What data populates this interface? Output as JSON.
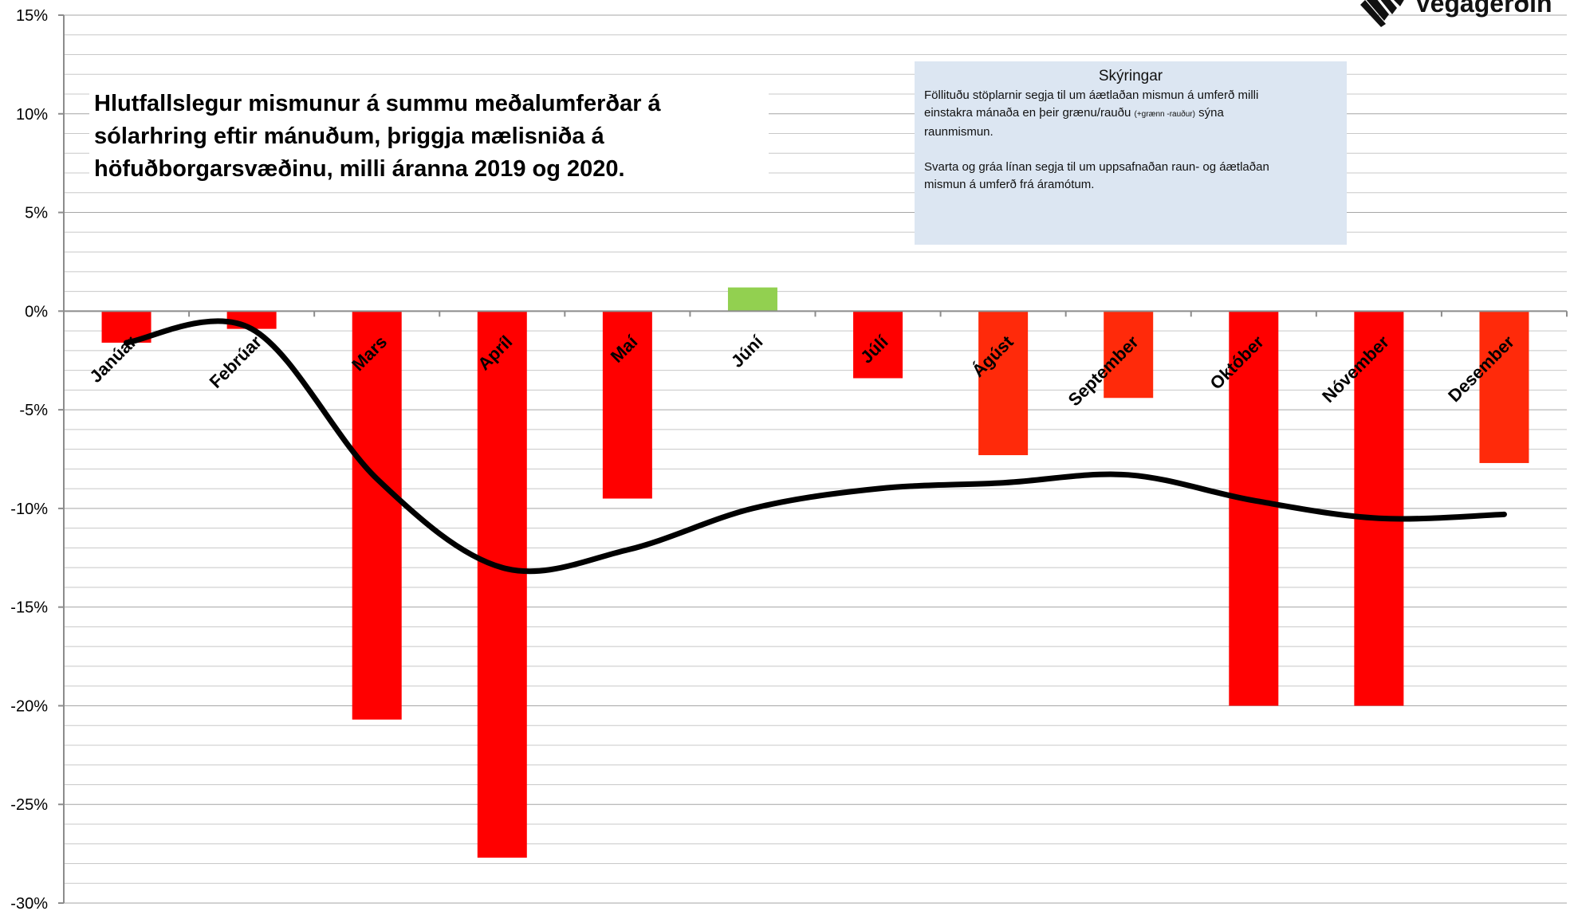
{
  "logo": {
    "text": "Vegagerðin",
    "icon": "vegagerdin-logo-icon"
  },
  "title": {
    "lines": [
      "Hlutfallslegur mismunur á summu meðalumferðar á",
      "sólarhring eftir mánuðum, þriggja mælisniða á",
      "höfuðborgarsvæðinu, milli áranna 2019 og 2020."
    ]
  },
  "legend": {
    "title": "Skýringar",
    "p1_line1": "Föllituðu stöplarnir segja til um áætlaðan mismun á umferð milli",
    "p1_line2_pre": "einstakra mánaða en þeir grænu/rauðu",
    "p1_line2_small": "(+grænn -rauður)",
    "p1_line2_post": "sýna",
    "p1_line3": "raunmismun.",
    "p2_line1": "Svarta og gráa línan segja til um uppsafnaðan raun- og áætlaðan",
    "p2_line2": "mismun á umferð frá áramótum."
  },
  "colors": {
    "positive": "#92d050",
    "negative": "#ff0000",
    "estimated": "#ff2a0a",
    "line": "#000000",
    "legend_bg": "#dce6f2"
  },
  "chart_data": {
    "type": "bar",
    "categories": [
      "Janúar",
      "Febrúar",
      "Mars",
      "Apríl",
      "Maí",
      "Júní",
      "Júlí",
      "Ágúst",
      "September",
      "Október",
      "Nóvember",
      "Desember"
    ],
    "series": [
      {
        "values": [
          -1.6,
          -0.9,
          -20.7,
          -27.7,
          -9.5,
          1.2,
          -3.4,
          -7.3,
          -4.4,
          -20.0,
          -20.0,
          -7.7
        ],
        "kinds": [
          "actual",
          "actual",
          "actual",
          "actual",
          "actual",
          "actual",
          "actual",
          "estimated",
          "estimated",
          "actual",
          "actual",
          "estimated"
        ]
      },
      {
        "type": "line",
        "values": [
          -1.6,
          -0.9,
          -8.5,
          -13.0,
          -12.1,
          -10.0,
          -9.0,
          -8.7,
          -8.3,
          -9.6,
          -10.5,
          -10.3
        ]
      }
    ],
    "ylim": [
      -30,
      15
    ],
    "yticks": [
      15,
      10,
      5,
      0,
      -5,
      -10,
      -15,
      -20,
      -25,
      -30
    ],
    "ytick_labels": [
      "15%",
      "10%",
      "5%",
      "0%",
      "-5%",
      "-10%",
      "-15%",
      "-20%",
      "-25%",
      "-30%"
    ],
    "grid": true
  }
}
